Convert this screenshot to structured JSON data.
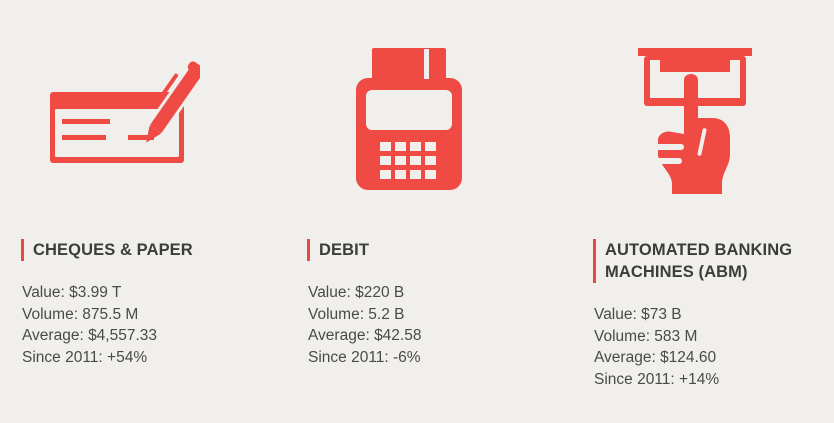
{
  "colors": {
    "background": "#f0efec",
    "accent": "#f04a44",
    "heading_text": "#3c3c3c",
    "body_text": "#4a4a4a"
  },
  "payments": [
    {
      "icon": "cheque-pen-icon",
      "title": "CHEQUES & PAPER",
      "title_lines": [
        "CHEQUES & PAPER"
      ],
      "value": "Value: $3.99 T",
      "volume": "Volume: 875.5 M",
      "average": "Average: $4,557.33",
      "since_2011": "Since 2011: +54%"
    },
    {
      "icon": "debit-terminal-icon",
      "title": "DEBIT",
      "title_lines": [
        "DEBIT"
      ],
      "value": "Value: $220 B",
      "volume": "Volume: 5.2 B",
      "average": "Average: $42.58",
      "since_2011": "Since 2011: -6%"
    },
    {
      "icon": "abm-cash-withdrawal-icon",
      "title": "AUTOMATED BANKING MACHINES (ABM)",
      "title_lines": [
        "AUTOMATED BANKING",
        "MACHINES (ABM)"
      ],
      "value": "Value: $73 B",
      "volume": "Volume: 583 M",
      "average": "Average: $124.60",
      "since_2011": "Since 2011: +14%"
    }
  ]
}
